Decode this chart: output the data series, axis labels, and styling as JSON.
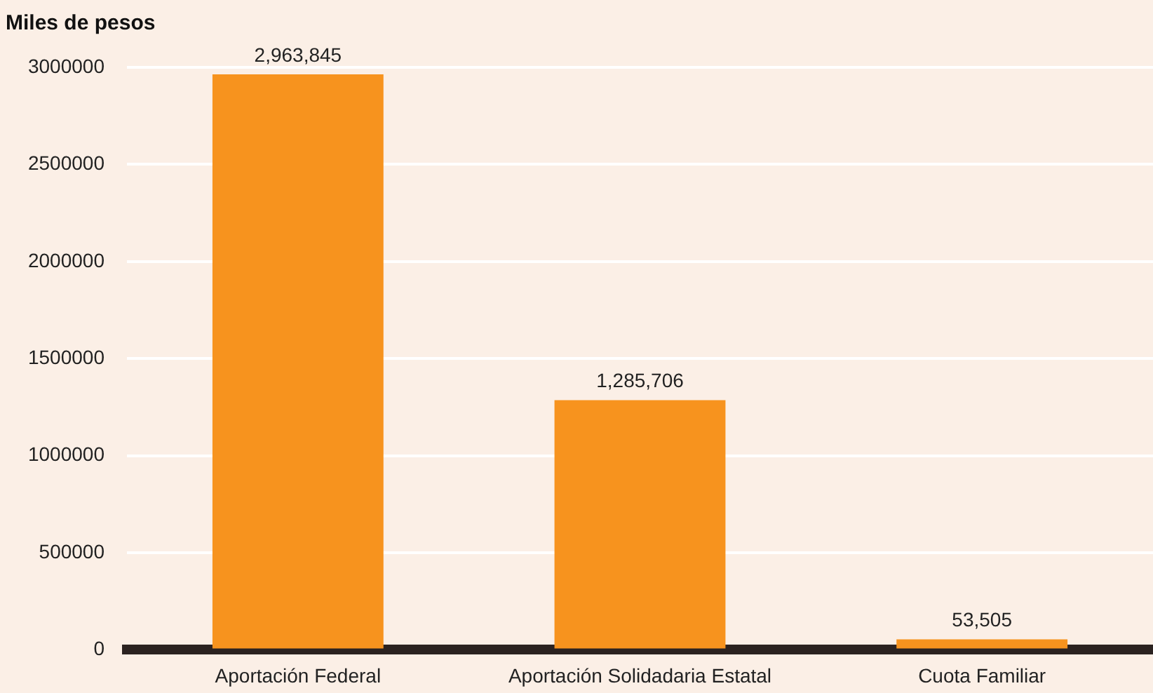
{
  "chart_data": {
    "type": "bar",
    "title": "Miles de pesos",
    "categories": [
      "Aportación Federal",
      "Aportación Solidadaria Estatal",
      "Cuota Familiar"
    ],
    "values": [
      2963845,
      1285706,
      53505
    ],
    "value_labels": [
      "2,963,845",
      "1,285,706",
      "53,505"
    ],
    "color": "#f7931e",
    "ylim": [
      0,
      3000000
    ],
    "yticks": [
      0,
      500000,
      1000000,
      1500000,
      2000000,
      2500000,
      3000000
    ],
    "grid": "y",
    "legend": false
  }
}
